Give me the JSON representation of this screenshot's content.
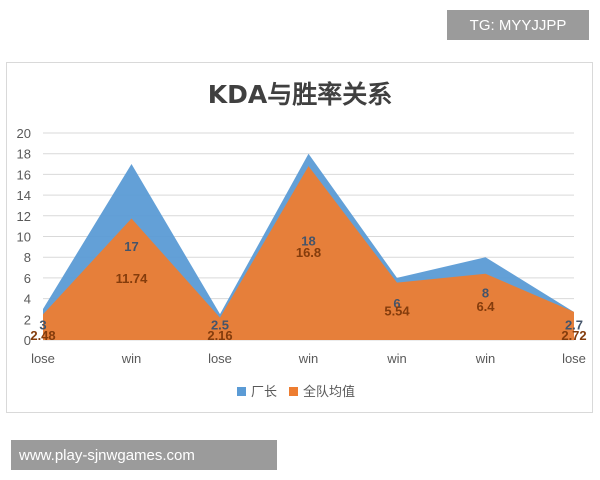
{
  "badge": {
    "text": "TG: MYYJJPP"
  },
  "watermark": {
    "text": "www.play-sjnwgames.com"
  },
  "chart_data": {
    "type": "area",
    "title": "KDA与胜率关系",
    "categories": [
      "lose",
      "win",
      "lose",
      "win",
      "win",
      "win",
      "lose"
    ],
    "ylim": [
      0,
      20
    ],
    "yticks": [
      0,
      2,
      4,
      6,
      8,
      10,
      12,
      14,
      16,
      18,
      20
    ],
    "grid": true,
    "legend_position": "bottom",
    "series": [
      {
        "name": "厂长",
        "color": "#5b9bd5",
        "values": [
          3,
          17,
          2.5,
          18,
          6,
          8,
          2.7
        ],
        "labels": [
          "3",
          "17",
          "2.5",
          "18",
          "6",
          "8",
          "2.7"
        ]
      },
      {
        "name": "全队均值",
        "color": "#ed7d31",
        "values": [
          2.48,
          11.74,
          2.16,
          16.8,
          5.54,
          6.4,
          2.72
        ],
        "labels": [
          "2.48",
          "11.74",
          "2.16",
          "16.8",
          "5.54",
          "6.4",
          "2.72"
        ]
      }
    ]
  }
}
